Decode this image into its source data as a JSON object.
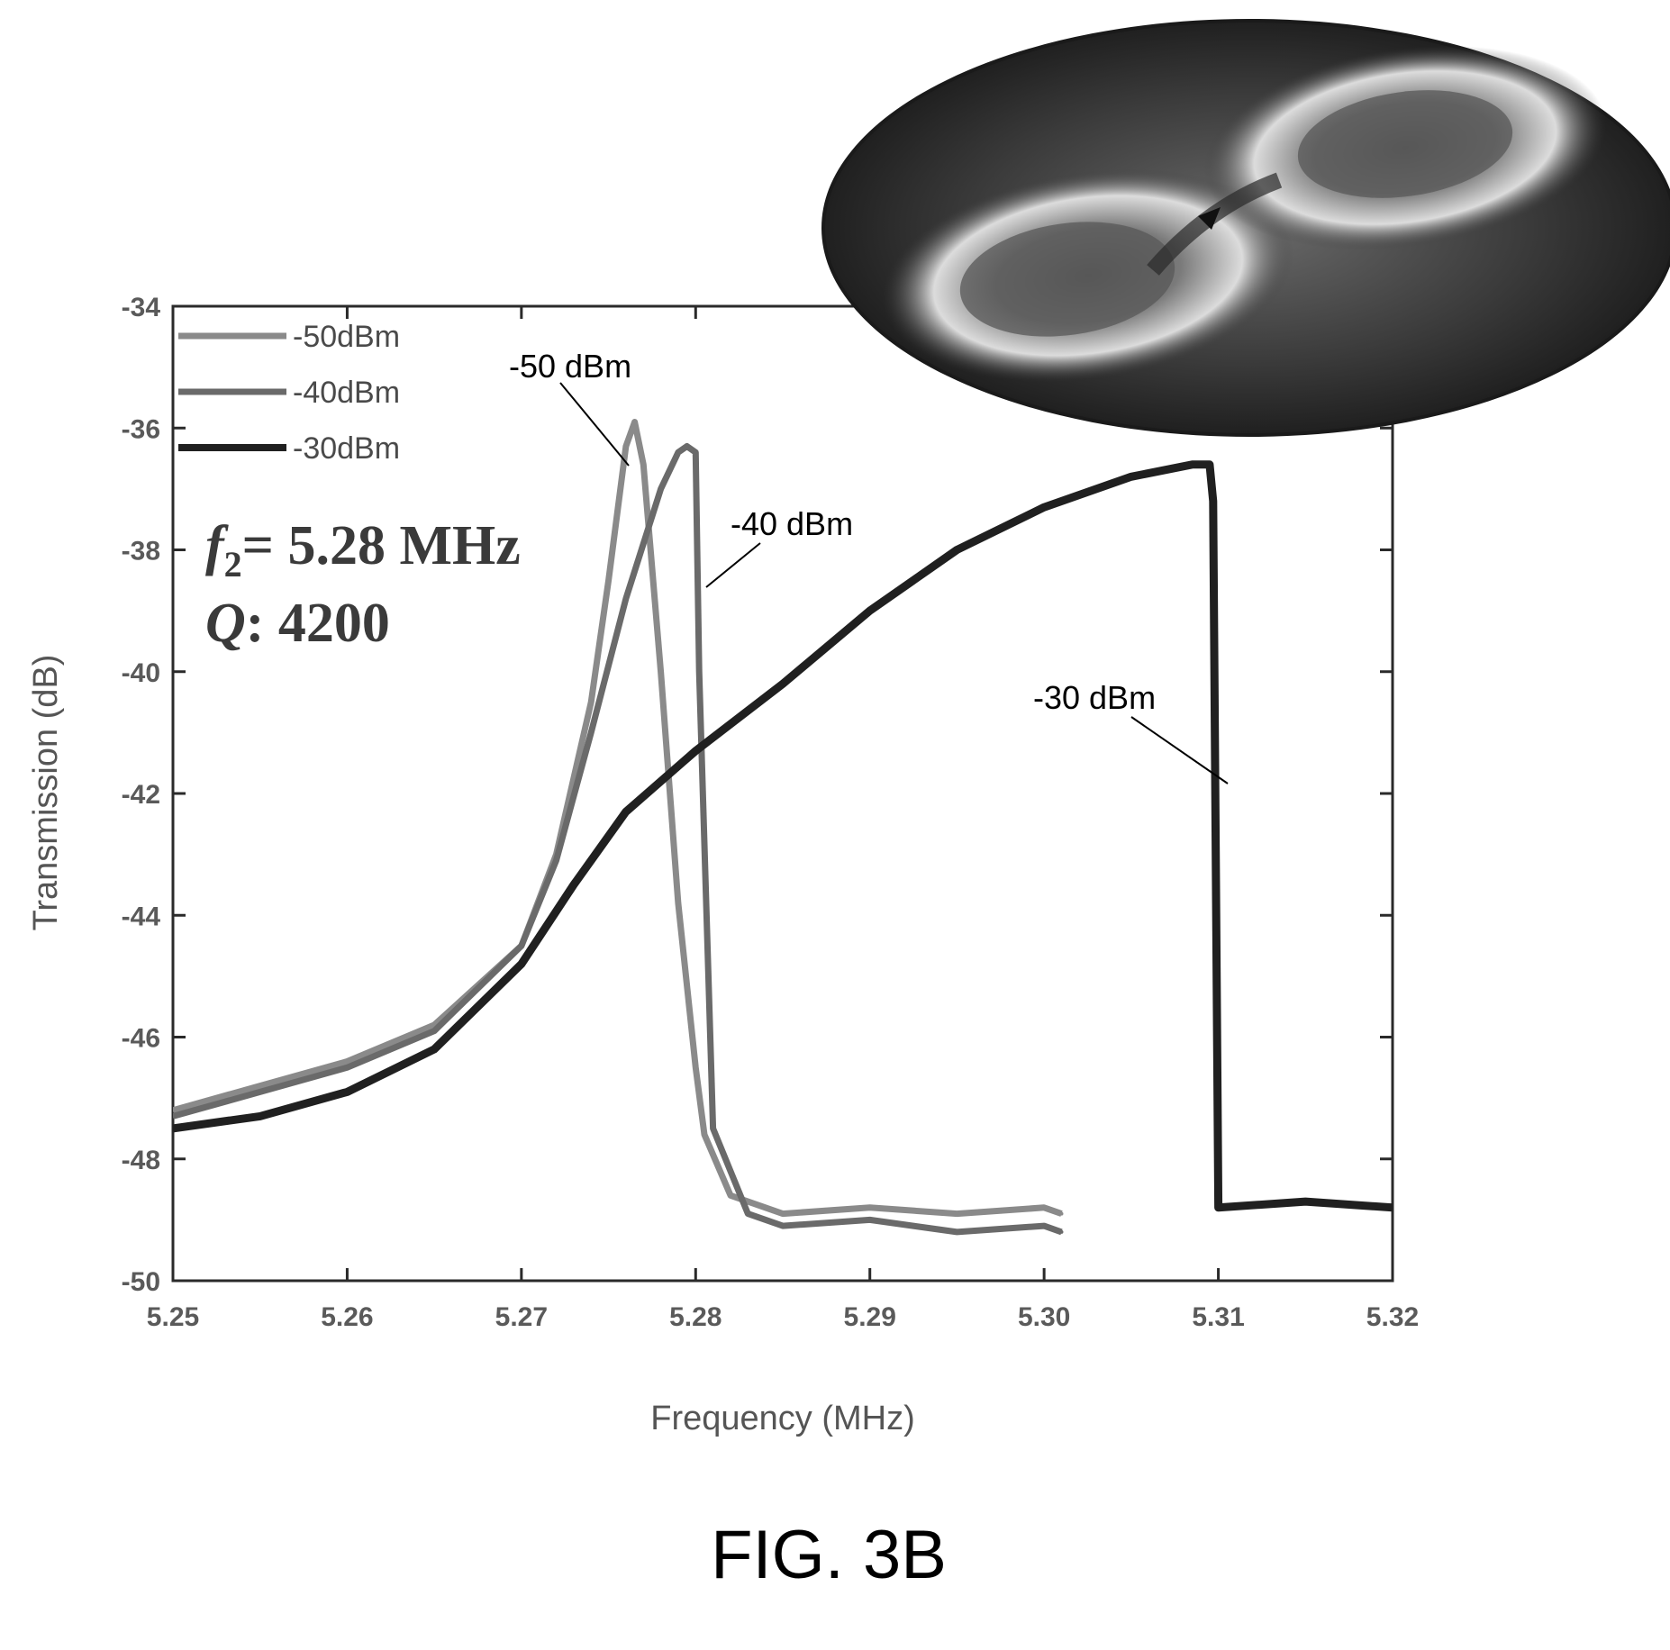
{
  "chart_data": {
    "type": "line",
    "xlabel": "Frequency (MHz)",
    "ylabel": "Transmission (dB)",
    "xlim": [
      5.25,
      5.32
    ],
    "ylim": [
      -50,
      -34
    ],
    "xticks": [
      "5.25",
      "5.26",
      "5.27",
      "5.28",
      "5.29",
      "5.30",
      "5.31",
      "5.32"
    ],
    "yticks": [
      "-34",
      "-36",
      "-38",
      "-40",
      "-42",
      "-44",
      "-46",
      "-48",
      "-50"
    ],
    "grid": false,
    "legend": {
      "position": "top-left",
      "entries": [
        "-50dBm",
        "-40dBm",
        "-30dBm"
      ]
    },
    "params": {
      "freq_symbol": "f",
      "freq_subscript": "2",
      "freq_value": "= 5.28 MHz",
      "q_symbol": "Q",
      "q_value": ": 4200"
    },
    "series": [
      {
        "name": "-50dBm",
        "color": "#8a8a8a",
        "x": [
          5.25,
          5.255,
          5.26,
          5.265,
          5.27,
          5.272,
          5.274,
          5.275,
          5.276,
          5.2765,
          5.277,
          5.278,
          5.279,
          5.28,
          5.2805,
          5.282,
          5.285,
          5.29,
          5.295,
          5.3,
          5.301
        ],
        "y": [
          -47.2,
          -46.8,
          -46.4,
          -45.8,
          -44.5,
          -43.0,
          -40.5,
          -38.5,
          -36.3,
          -35.9,
          -36.6,
          -40.0,
          -43.8,
          -46.5,
          -47.6,
          -48.6,
          -48.9,
          -48.8,
          -48.9,
          -48.8,
          -48.9
        ]
      },
      {
        "name": "-40dBm",
        "color": "#6a6a6a",
        "x": [
          5.25,
          5.255,
          5.26,
          5.265,
          5.27,
          5.272,
          5.274,
          5.276,
          5.278,
          5.279,
          5.2795,
          5.28,
          5.2802,
          5.281,
          5.283,
          5.285,
          5.29,
          5.295,
          5.3,
          5.301
        ],
        "y": [
          -47.3,
          -46.9,
          -46.5,
          -45.9,
          -44.5,
          -43.1,
          -41.0,
          -38.8,
          -37.0,
          -36.4,
          -36.3,
          -36.4,
          -40.0,
          -47.5,
          -48.9,
          -49.1,
          -49.0,
          -49.2,
          -49.1,
          -49.2
        ]
      },
      {
        "name": "-30dBm",
        "color": "#202020",
        "x": [
          5.25,
          5.255,
          5.26,
          5.265,
          5.27,
          5.273,
          5.276,
          5.28,
          5.285,
          5.29,
          5.295,
          5.3,
          5.305,
          5.3085,
          5.3095,
          5.3097,
          5.31,
          5.315,
          5.32
        ],
        "y": [
          -47.5,
          -47.3,
          -46.9,
          -46.2,
          -44.8,
          -43.5,
          -42.3,
          -41.3,
          -40.2,
          -39.0,
          -38.0,
          -37.3,
          -36.8,
          -36.6,
          -36.6,
          -37.2,
          -48.8,
          -48.7,
          -48.8
        ]
      }
    ],
    "annotations": [
      {
        "text": "-50 dBm",
        "series": "-50dBm"
      },
      {
        "text": "-40 dBm",
        "series": "-40dBm"
      },
      {
        "text": "-30 dBm",
        "series": "-30dBm"
      }
    ]
  },
  "figure": {
    "caption": "FIG. 3B",
    "inset": "mode-shape-icon"
  }
}
